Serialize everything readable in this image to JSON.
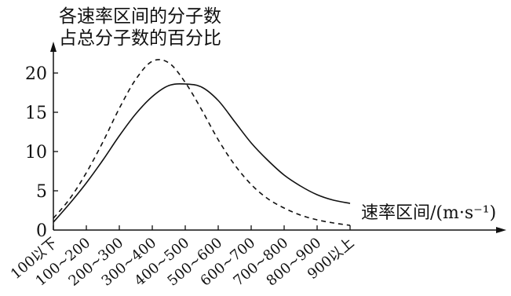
{
  "chart_data": {
    "type": "line",
    "ylabel": "各速率区间的分子数\n占总分子数的百分比",
    "xlabel": "速率区间/(m·s⁻¹)",
    "categories": [
      "100以下",
      "100~200",
      "200~300",
      "300~400",
      "400~500",
      "500~600",
      "600~700",
      "700~800",
      "800~900",
      "900以上"
    ],
    "y_ticks": [
      0,
      5,
      10,
      15,
      20
    ],
    "ylim": [
      0,
      24
    ],
    "series": [
      {
        "style": "solid",
        "x": [
          0,
          0.5,
          1,
          1.5,
          2,
          2.5,
          3,
          3.5,
          4,
          4.5,
          5,
          5.5,
          6,
          6.5,
          7,
          7.5,
          8,
          8.5,
          9
        ],
        "values": [
          1.0,
          3.4,
          6.0,
          8.9,
          12.0,
          14.8,
          17.0,
          18.4,
          18.6,
          18.2,
          16.5,
          13.8,
          11.1,
          8.9,
          7.0,
          5.6,
          4.5,
          3.8,
          3.4
        ]
      },
      {
        "style": "dashed",
        "x": [
          0,
          0.5,
          1,
          1.5,
          2,
          2.5,
          3,
          3.5,
          4,
          4.5,
          5,
          5.5,
          6,
          6.5,
          7,
          7.5,
          8,
          8.5,
          9
        ],
        "values": [
          1.5,
          4.0,
          7.3,
          11.2,
          15.5,
          19.2,
          21.5,
          21.3,
          18.8,
          15.3,
          11.5,
          8.3,
          5.8,
          4.0,
          2.8,
          1.9,
          1.3,
          0.9,
          0.6
        ]
      }
    ],
    "grid": false,
    "legend": "none"
  }
}
